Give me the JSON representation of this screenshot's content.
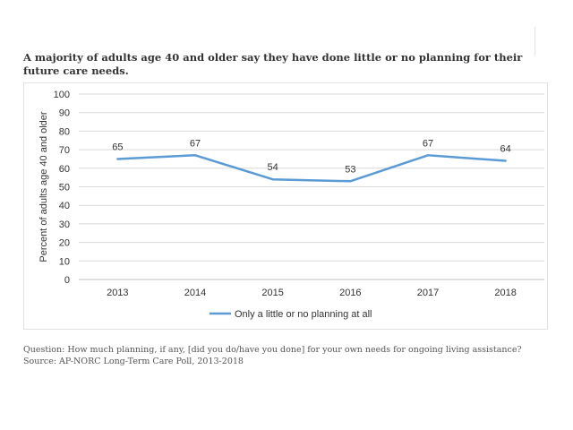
{
  "title": "A majority of adults age 40 and older say they have done little or no planning for their future care needs.",
  "footer": {
    "question": "Question: How much planning, if any, [did you do/have you done] for your own needs for ongoing living assistance?",
    "source": "Source: AP-NORC Long-Term Care Poll, 2013-2018"
  },
  "chart_data": {
    "type": "line",
    "title": "A majority of adults age 40 and older say they have done little or no planning for their future care needs.",
    "xlabel": "",
    "ylabel": "Percent of adults age 40 and older",
    "categories": [
      "2013",
      "2014",
      "2015",
      "2016",
      "2017",
      "2018"
    ],
    "series": [
      {
        "name": "Only a little or no planning at all",
        "values": [
          65,
          67,
          54,
          53,
          67,
          64
        ],
        "color": "#5b9bd5"
      }
    ],
    "ylim": [
      0,
      100
    ],
    "yticks": [
      0,
      10,
      20,
      30,
      40,
      50,
      60,
      70,
      80,
      90,
      100
    ],
    "grid": true,
    "data_labels": true,
    "legend": "bottom"
  }
}
